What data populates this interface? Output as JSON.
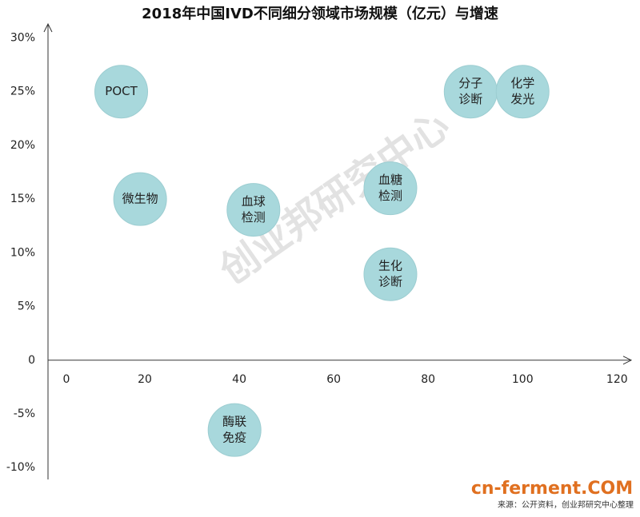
{
  "chart_data": {
    "type": "scatter",
    "title": "2018年中国IVD不同细分领域市场规模（亿元）与增速",
    "x": [
      15,
      19,
      43,
      72,
      72,
      89,
      100,
      39
    ],
    "values": [
      25,
      15,
      14,
      16,
      8,
      25,
      25,
      -6.5
    ],
    "point_labels": [
      [
        "POCT"
      ],
      [
        "微生物"
      ],
      [
        "血球",
        "检测"
      ],
      [
        "血糖",
        "检测"
      ],
      [
        "生化",
        "诊断"
      ],
      [
        "分子",
        "诊断"
      ],
      [
        "化学",
        "发光"
      ],
      [
        "酶联",
        "免疫"
      ]
    ],
    "color": "#a8d8dc",
    "xlim": [
      0,
      123
    ],
    "ylim": [
      -11.1,
      31.3
    ],
    "xticks": [
      0,
      20,
      40,
      60,
      80,
      100,
      120
    ],
    "yticks": [
      {
        "value": 30,
        "label": "30%"
      },
      {
        "value": 25,
        "label": "25%"
      },
      {
        "value": 20,
        "label": "20%"
      },
      {
        "value": 15,
        "label": "15%"
      },
      {
        "value": 10,
        "label": "10%"
      },
      {
        "value": 5,
        "label": "5%"
      },
      0,
      {
        "value": -5,
        "label": "-5%"
      },
      {
        "value": -10,
        "label": "-10%"
      }
    ],
    "watermark": "创业邦研究中心",
    "source": "来源：公开资料，创业邦研究中心整理",
    "logo": "cn-ferment.COM"
  }
}
